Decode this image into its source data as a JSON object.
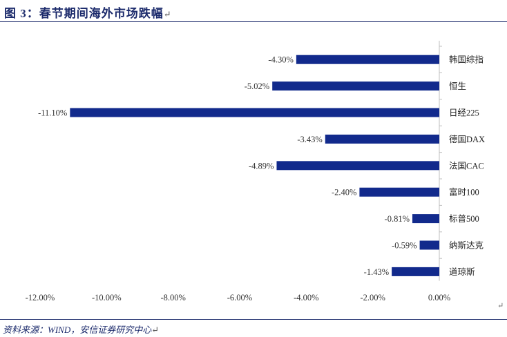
{
  "header": {
    "title": "图 3：春节期间海外市场跌幅"
  },
  "footer": {
    "source": "资料来源：WIND，安信证券研究中心"
  },
  "chart_data": {
    "type": "bar",
    "orientation": "horizontal",
    "title": "",
    "xlabel": "",
    "ylabel": "",
    "color": "#122a8c",
    "xlim": [
      -12,
      0
    ],
    "x_ticks": [
      "-12.00%",
      "-10.00%",
      "-8.00%",
      "-6.00%",
      "-4.00%",
      "-2.00%",
      "0.00%"
    ],
    "grid": false,
    "categories": [
      "韩国综指",
      "恒生",
      "日经225",
      "德国DAX",
      "法国CAC",
      "富时100",
      "标普500",
      "纳斯达克",
      "道琼斯"
    ],
    "values": [
      -4.3,
      -5.02,
      -11.1,
      -3.43,
      -4.89,
      -2.4,
      -0.81,
      -0.59,
      -1.43
    ],
    "data_labels": [
      "-4.30%",
      "-5.02%",
      "-11.10%",
      "-3.43%",
      "-4.89%",
      "-2.40%",
      "-0.81%",
      "-0.59%",
      "-1.43%"
    ]
  }
}
